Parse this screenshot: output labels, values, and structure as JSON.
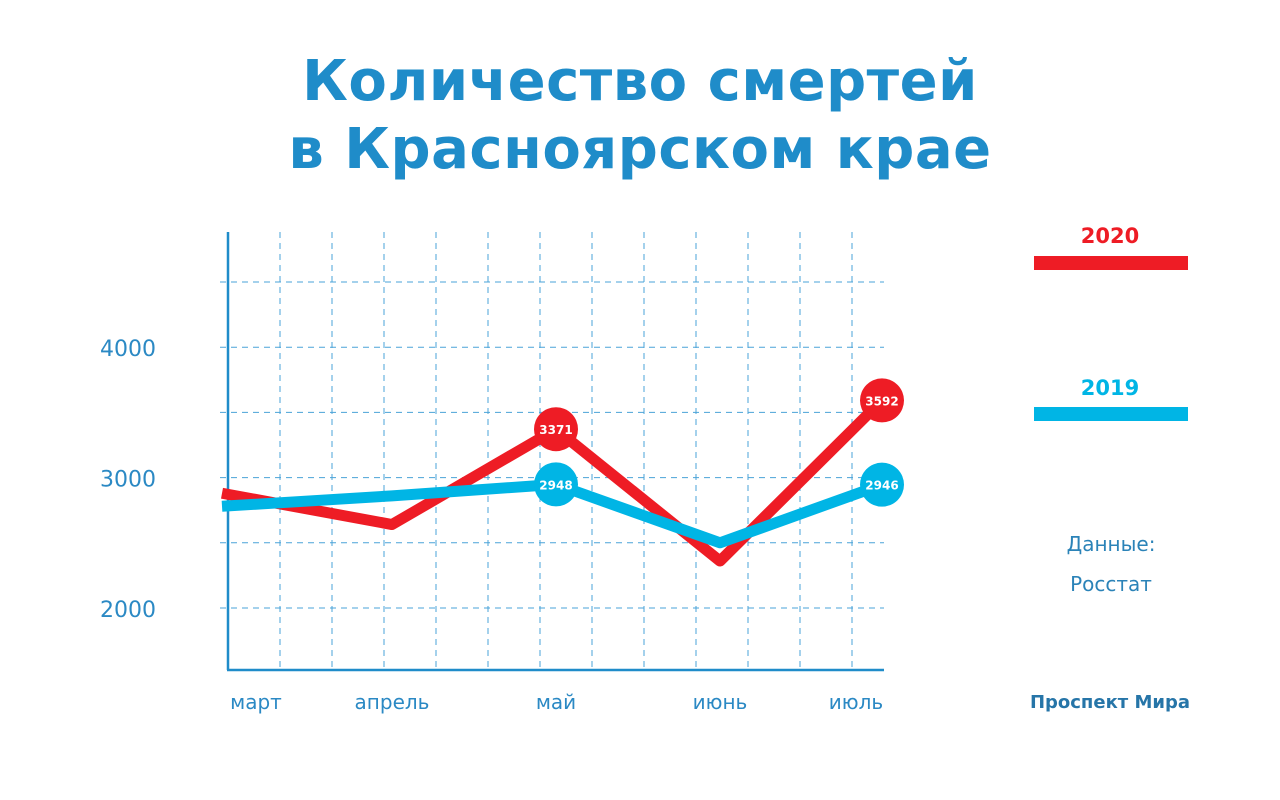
{
  "title": {
    "line1": "Количество смертей",
    "line2": "в Красноярском крае"
  },
  "chart_data": {
    "type": "line",
    "categories": [
      "март",
      "апрель",
      "май",
      "июнь",
      "июль"
    ],
    "series": [
      {
        "name": "2020",
        "color": "#ee1c25",
        "values": [
          2880,
          2640,
          3371,
          2360,
          3592
        ]
      },
      {
        "name": "2019",
        "color": "#00b5e5",
        "values": [
          2780,
          2860,
          2948,
          2500,
          2946
        ]
      }
    ],
    "point_labels": {
      "2020": [
        null,
        null,
        "3371",
        null,
        "3592"
      ],
      "2019": [
        null,
        null,
        "2948",
        null,
        "2946"
      ]
    },
    "y_ticks": [
      "4000",
      "3000",
      "2000"
    ],
    "y_tick_values": [
      4000,
      3000,
      2000
    ],
    "ylim": [
      1500,
      4500
    ],
    "grid": true,
    "legend_placement": "right",
    "axis_color": "#1f8cc9",
    "grid_color": "#4aa3d8"
  },
  "legend": [
    {
      "label": "2020",
      "color": "#ee1c25"
    },
    {
      "label": "2019",
      "color": "#00b5e5"
    }
  ],
  "source": {
    "line1": "Данные:",
    "line2": "Росстат"
  },
  "brand": "Проспект Мира"
}
